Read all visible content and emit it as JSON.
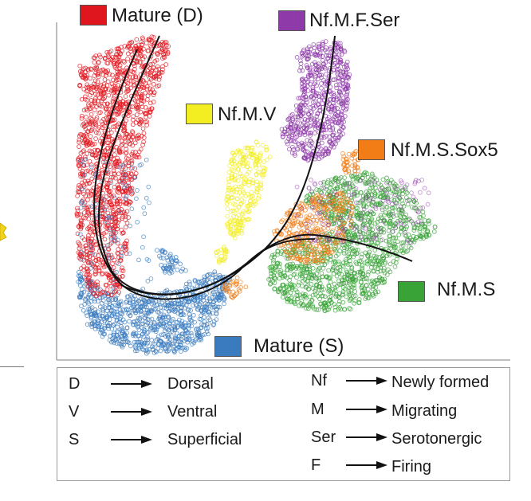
{
  "clusters": [
    {
      "id": "mature-d",
      "label": "Mature (D)",
      "color": "#e0161e"
    },
    {
      "id": "nf-m-f-ser",
      "label": "Nf.M.F.Ser",
      "color": "#8e3aa8"
    },
    {
      "id": "nf-m-v",
      "label": "Nf.M.V",
      "color": "#f2ee22"
    },
    {
      "id": "nf-m-s-sox5",
      "label": "Nf.M.S.Sox5",
      "color": "#f27d17"
    },
    {
      "id": "nf-m-s",
      "label": "Nf.M.S",
      "color": "#39a338"
    },
    {
      "id": "mature-s",
      "label": "Mature (S)",
      "color": "#3a7bbf"
    }
  ],
  "key": {
    "left": [
      {
        "abbr": "D",
        "meaning": "Dorsal"
      },
      {
        "abbr": "V",
        "meaning": "Ventral"
      },
      {
        "abbr": "S",
        "meaning": "Superficial"
      }
    ],
    "right": [
      {
        "abbr": "Nf",
        "meaning": "Newly formed"
      },
      {
        "abbr": "M",
        "meaning": "Migrating"
      },
      {
        "abbr": "Ser",
        "meaning": "Serotonergic"
      },
      {
        "abbr": "F",
        "meaning": "Firing"
      }
    ]
  },
  "colors": {
    "axis": "#999999",
    "trajectory": "#111111",
    "partial_marker": "#f2d21a"
  }
}
